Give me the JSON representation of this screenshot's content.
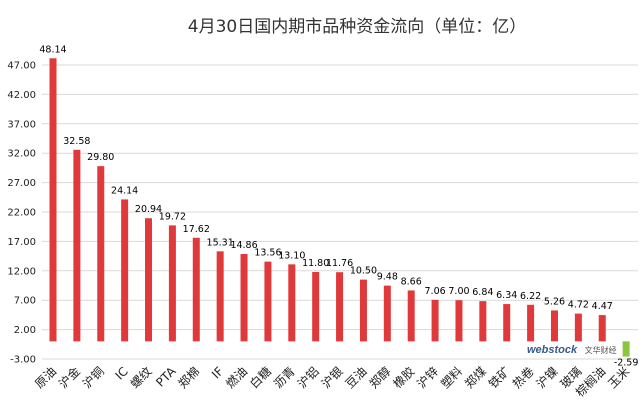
{
  "chart_data": {
    "type": "bar",
    "title": "4月30日国内期市品种资金流向（单位：亿）",
    "xlabel": "",
    "ylabel": "",
    "ylim": [
      -3.0,
      50.0
    ],
    "yticks": [
      "-3.00",
      "2.00",
      "7.00",
      "12.00",
      "17.00",
      "22.00",
      "27.00",
      "32.00",
      "37.00",
      "42.00",
      "47.00"
    ],
    "grid": true,
    "categories": [
      "原油",
      "沪金",
      "沪铜",
      "IC",
      "螺纹",
      "PTA",
      "郑棉",
      "IF",
      "燃油",
      "白糖",
      "沥青",
      "沪铝",
      "沪银",
      "豆油",
      "郑醇",
      "橡胶",
      "沪锌",
      "塑料",
      "郑煤",
      "铁矿",
      "热卷",
      "沪镍",
      "玻璃",
      "棕榈油",
      "玉米"
    ],
    "values": [
      48.14,
      32.58,
      29.8,
      24.14,
      20.94,
      19.72,
      17.62,
      15.31,
      14.86,
      13.56,
      13.1,
      11.8,
      11.76,
      10.5,
      9.48,
      8.66,
      7.06,
      7.0,
      6.84,
      6.34,
      6.22,
      5.26,
      4.72,
      4.47,
      -2.59
    ],
    "value_labels": [
      "48.14",
      "32.58",
      "29.80",
      "24.14",
      "20.94",
      "19.72",
      "17.62",
      "15.31",
      "14.86",
      "13.56",
      "13.10",
      "11.80",
      "11.76",
      "10.50",
      "9.48",
      "8.66",
      "7.06",
      "7.00",
      "6.84",
      "6.34",
      "6.22",
      "5.26",
      "4.72",
      "4.47",
      "-2.59"
    ],
    "colors": {
      "positive": "#e0393b",
      "negative": "#8cc63f"
    }
  },
  "watermark": {
    "brand": "webstock",
    "sub": "文华财经"
  }
}
